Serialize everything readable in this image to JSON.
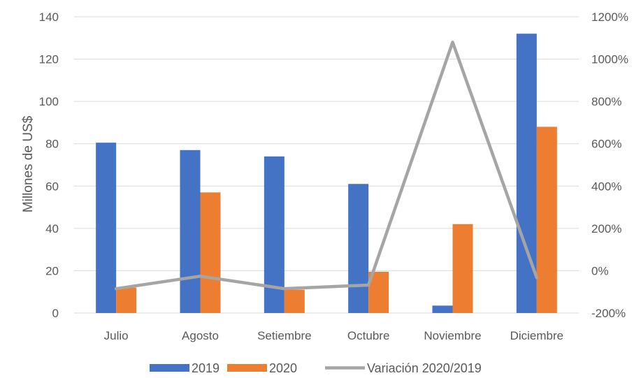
{
  "chart_data": {
    "type": "bar",
    "categories": [
      "Julio",
      "Agosto",
      "Setiembre",
      "Octubre",
      "Noviembre",
      "Diciembre"
    ],
    "series": [
      {
        "name": "2019",
        "type": "bar",
        "axis": "left",
        "color": "#4472C4",
        "values": [
          80.5,
          77.0,
          74.0,
          61.0,
          3.5,
          132.0
        ]
      },
      {
        "name": "2020",
        "type": "bar",
        "axis": "left",
        "color": "#ED7D31",
        "values": [
          12.0,
          57.0,
          11.0,
          19.5,
          42.0,
          88.0
        ]
      },
      {
        "name": "Variación 2020/2019",
        "type": "line",
        "axis": "right",
        "color": "#A5A5A5",
        "values": [
          -85,
          -26,
          -85,
          -68,
          1080,
          -33
        ]
      }
    ],
    "ylabel": "Millones de US$",
    "ylim": [
      0,
      140
    ],
    "yticks": [
      "0",
      "20",
      "40",
      "60",
      "80",
      "100",
      "120",
      "140"
    ],
    "y2lim": [
      -200,
      1200
    ],
    "y2ticks": [
      "-200%",
      "0%",
      "200%",
      "400%",
      "600%",
      "800%",
      "1000%",
      "1200%"
    ],
    "grid": true,
    "legend_position": "bottom"
  }
}
